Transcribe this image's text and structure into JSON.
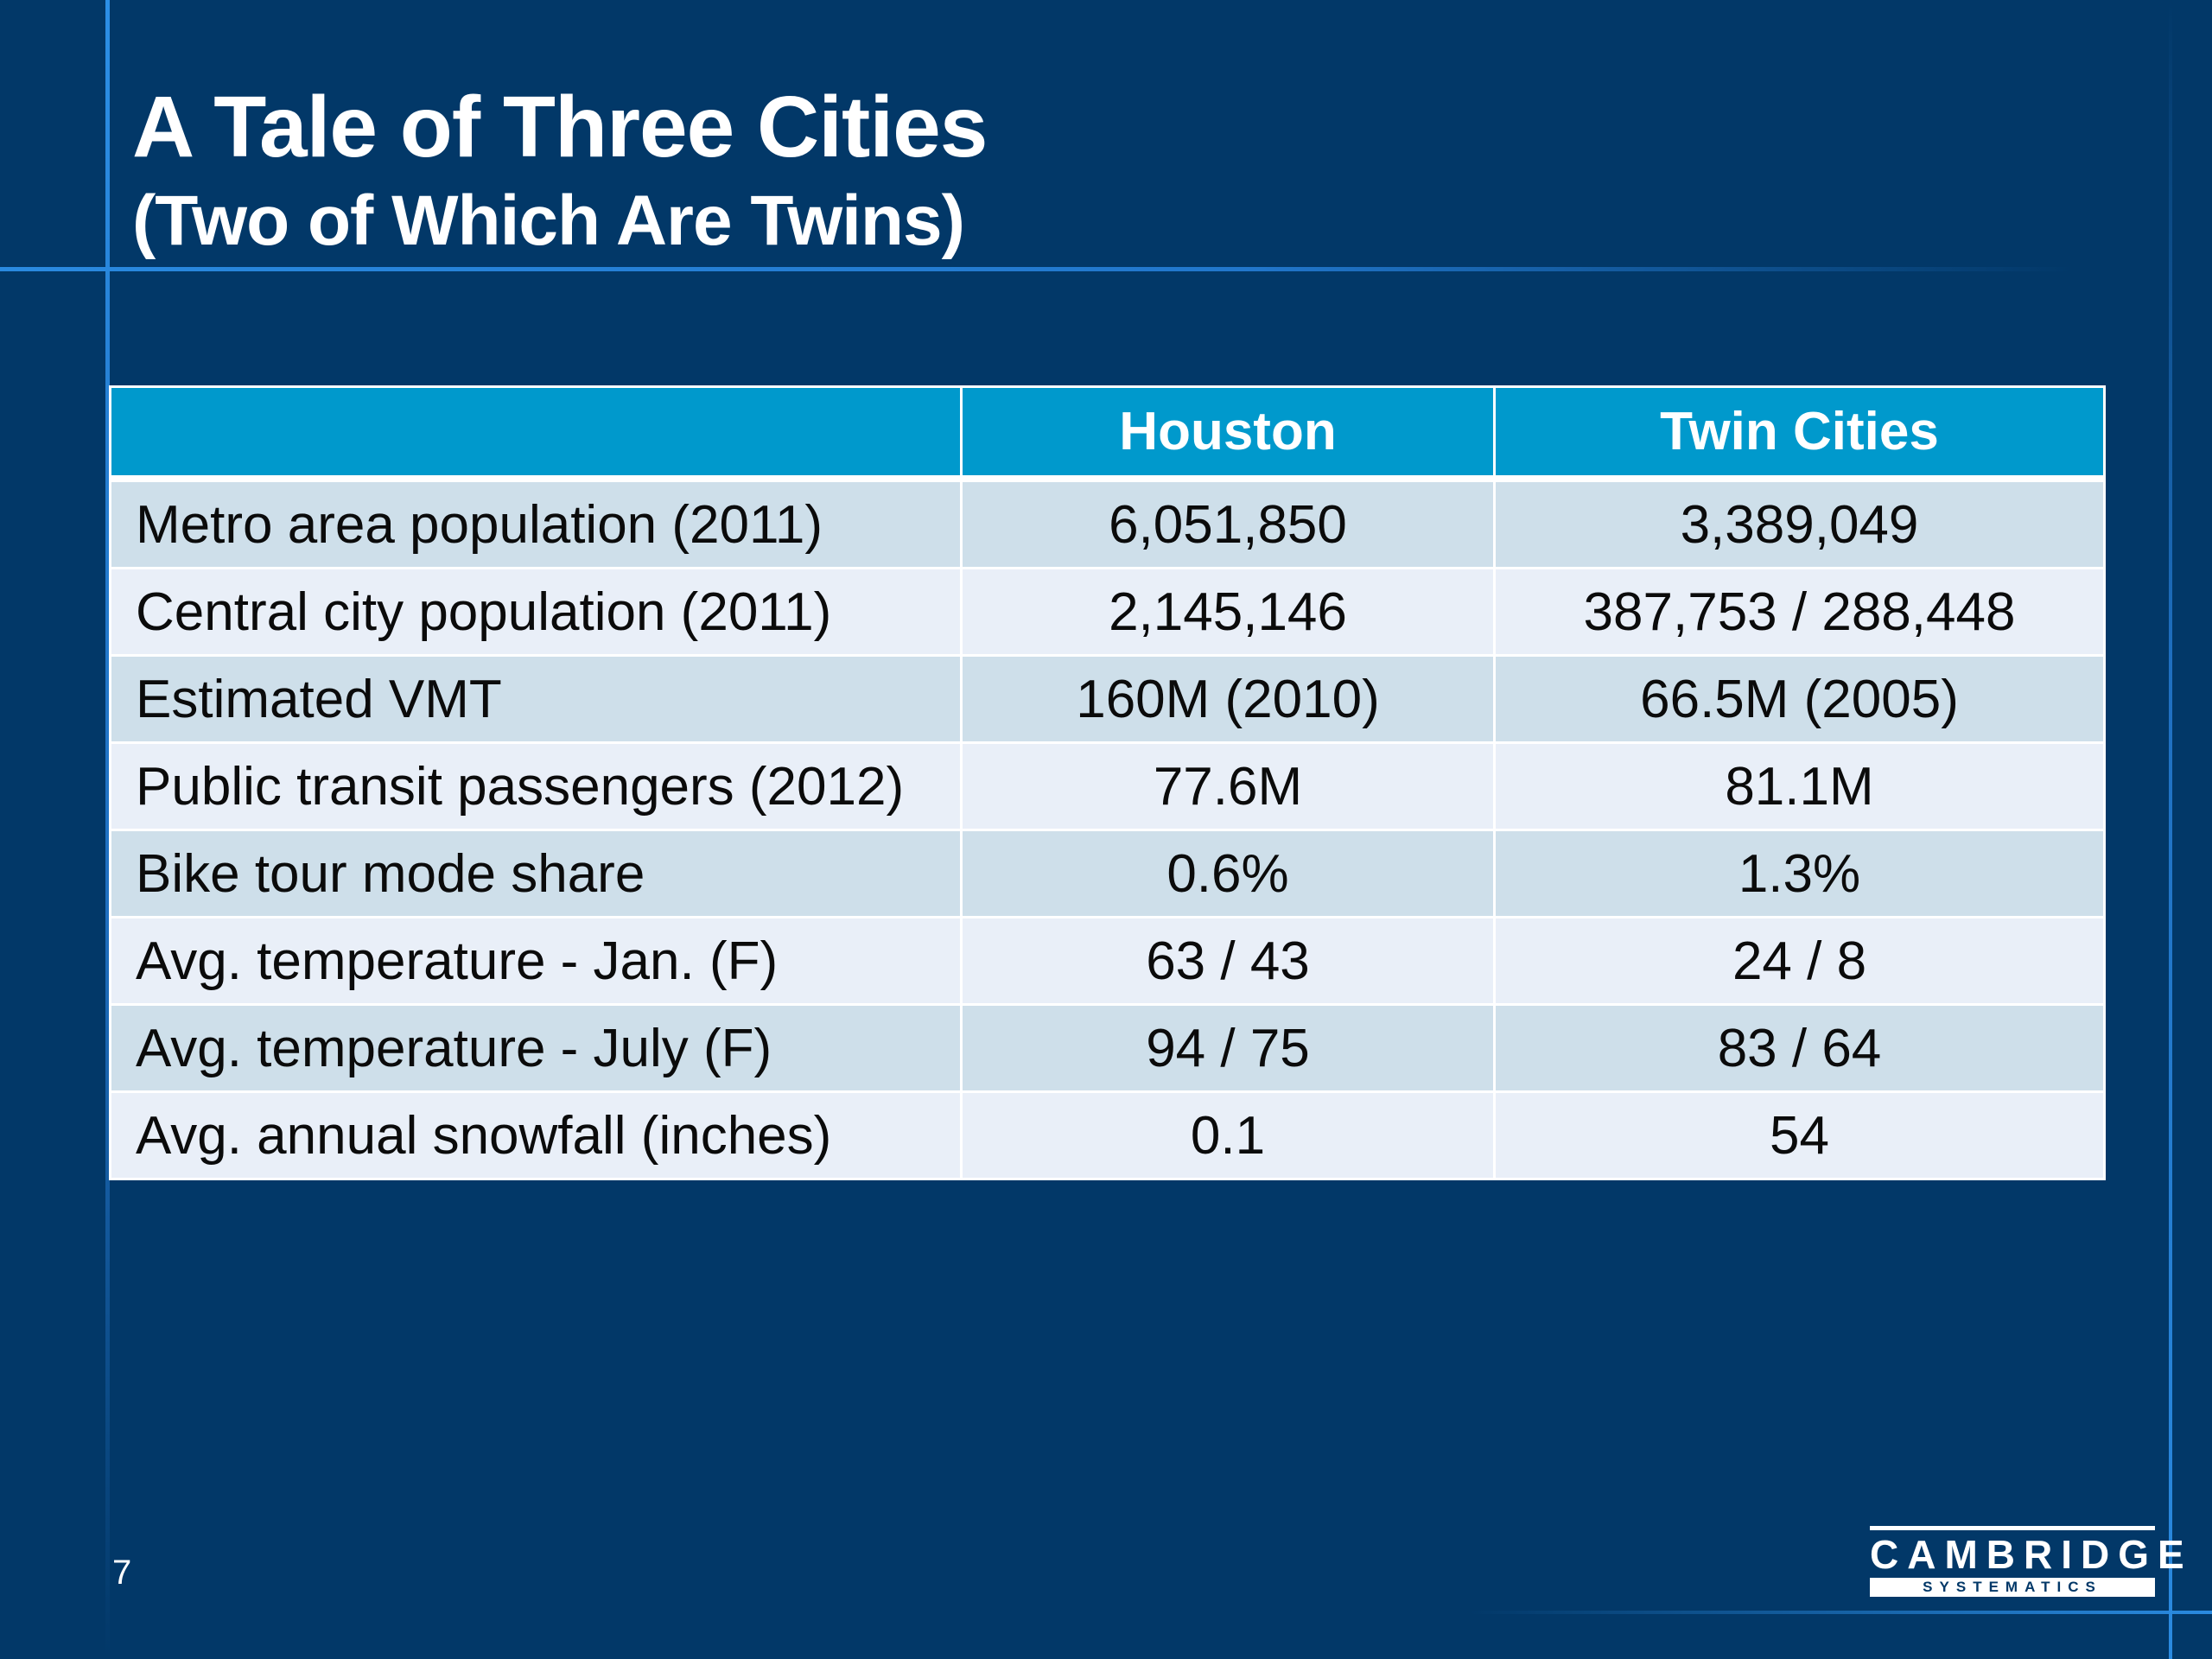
{
  "slide": {
    "title": "A Tale of Three Cities",
    "subtitle": "(Two of Which Are Twins)",
    "page_number": "7"
  },
  "table": {
    "headers": [
      "",
      "Houston",
      "Twin Cities"
    ],
    "rows": [
      {
        "label": "Metro area population (2011)",
        "houston": "6,051,850",
        "twin_cities": "3,389,049"
      },
      {
        "label": "Central city population (2011)",
        "houston": "2,145,146",
        "twin_cities": "387,753 / 288,448"
      },
      {
        "label": "Estimated VMT",
        "houston": "160M (2010)",
        "twin_cities": "66.5M (2005)"
      },
      {
        "label": "Public transit passengers (2012)",
        "houston": "77.6M",
        "twin_cities": "81.1M"
      },
      {
        "label": "Bike tour mode share",
        "houston": "0.6%",
        "twin_cities": "1.3%"
      },
      {
        "label": "Avg. temperature - Jan. (F)",
        "houston": "63 / 43",
        "twin_cities": "24 / 8"
      },
      {
        "label": "Avg. temperature - July (F)",
        "houston": "94 / 75",
        "twin_cities": "83 / 64"
      },
      {
        "label": "Avg. annual snowfall (inches)",
        "houston": "0.1",
        "twin_cities": "54"
      }
    ]
  },
  "logo": {
    "main_text": "CAMBRIDGE",
    "sub_text": "SYSTEMATICS"
  },
  "colors": {
    "background": "#023868",
    "header_fill": "#0099cc",
    "row_odd": "#cedfea",
    "row_even": "#e9eff8",
    "accent_line": "#2a8ae0"
  }
}
